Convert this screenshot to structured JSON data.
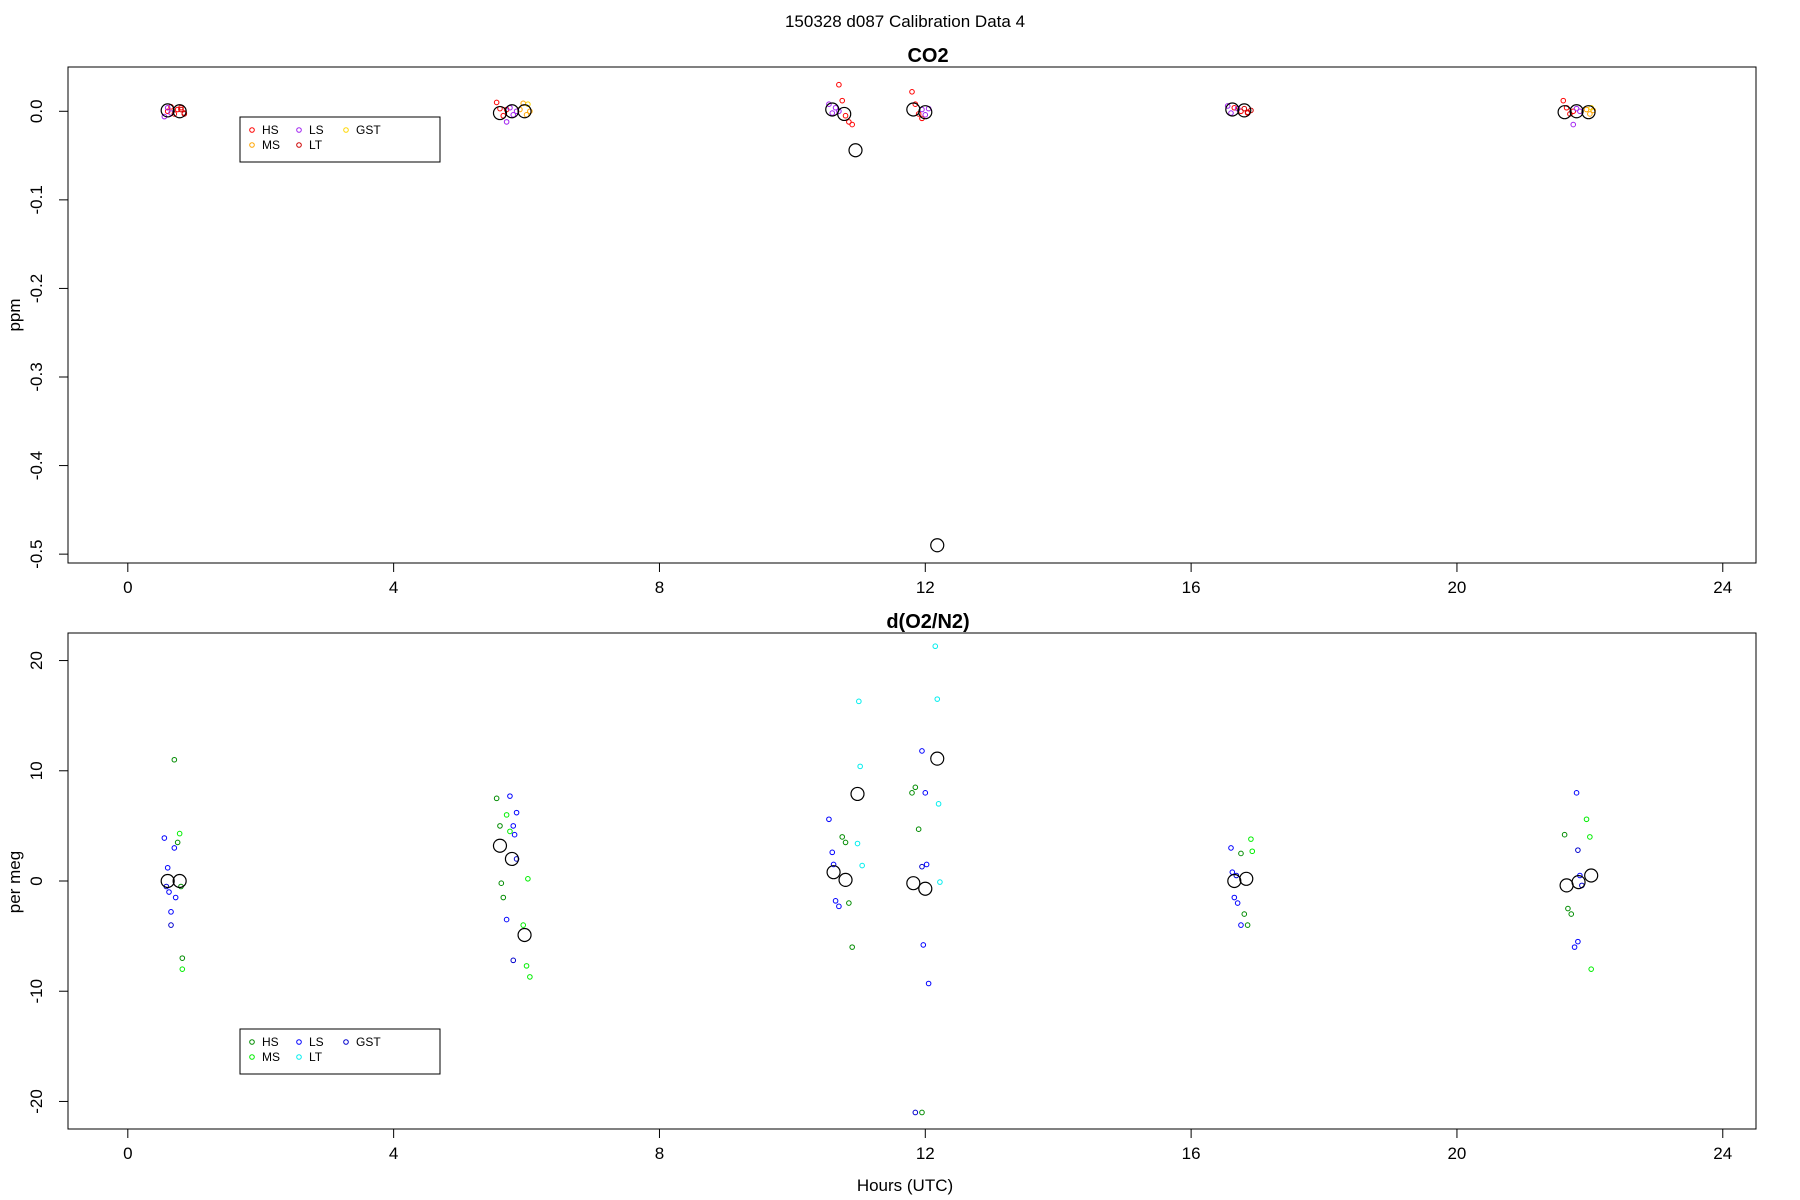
{
  "figure": {
    "title": "150328   d087   Calibration Data 4"
  },
  "chart_data": [
    {
      "type": "scatter",
      "title": "CO2",
      "xlabel": "",
      "ylabel": "ppm",
      "xlim": [
        -0.9,
        24.5
      ],
      "ylim": [
        -0.51,
        0.05
      ],
      "xticks": [
        0,
        4,
        8,
        12,
        16,
        20,
        24
      ],
      "yticks": [
        0.0,
        -0.1,
        -0.2,
        -0.3,
        -0.4,
        -0.5
      ],
      "yticklabels": [
        "0.0",
        "-0.1",
        "-0.2",
        "-0.3",
        "-0.4",
        "-0.5"
      ],
      "grid": false,
      "legend": {
        "position": "top-left",
        "entries": [
          {
            "label": "HS",
            "color": "#ff0000"
          },
          {
            "label": "MS",
            "color": "#ffa500"
          },
          {
            "label": "LS",
            "color": "#a020f0"
          },
          {
            "label": "LT",
            "color": "#cd0000"
          },
          {
            "label": "GST",
            "color": "#ffd700"
          }
        ]
      },
      "series": [
        {
          "name": "HS",
          "color": "#ff0000",
          "x": [
            0.6,
            0.65,
            0.7,
            0.75,
            0.8,
            0.85,
            5.55,
            5.6,
            5.65,
            5.7,
            10.7,
            10.75,
            10.8,
            10.85,
            10.9,
            11.8,
            11.85,
            11.9,
            11.95,
            16.65,
            16.75,
            16.85,
            21.6,
            21.65,
            21.7,
            21.75
          ],
          "y": [
            0.0,
            0.005,
            -0.003,
            0.002,
            0.004,
            -0.002,
            0.01,
            0.003,
            -0.005,
            0.002,
            0.03,
            0.012,
            -0.005,
            -0.012,
            -0.015,
            0.022,
            0.008,
            -0.003,
            -0.008,
            0.004,
            0.0,
            -0.002,
            0.012,
            0.004,
            -0.003,
            0.0
          ]
        },
        {
          "name": "MS",
          "color": "#ffa500",
          "x": [
            5.9,
            5.95,
            6.0,
            6.05,
            21.95,
            22.0,
            22.05
          ],
          "y": [
            0.002,
            0.009,
            -0.004,
            0.0,
            0.002,
            -0.003,
            0.001
          ]
        },
        {
          "name": "LS",
          "color": "#a020f0",
          "x": [
            0.55,
            0.6,
            0.65,
            5.7,
            5.75,
            5.8,
            5.85,
            10.55,
            10.6,
            10.65,
            10.7,
            11.95,
            12.0,
            12.05,
            16.55,
            16.6,
            16.7,
            21.75,
            21.8,
            21.85
          ],
          "y": [
            -0.006,
            0.004,
            -0.002,
            -0.012,
            0.004,
            -0.004,
            0.0,
            0.008,
            -0.002,
            0.004,
            0.0,
            0.002,
            -0.004,
            0.003,
            0.006,
            -0.002,
            0.003,
            -0.015,
            0.003,
            0.0
          ]
        },
        {
          "name": "LT",
          "color": "#cd0000",
          "x": [
            0.8,
            0.85,
            16.8,
            16.85,
            16.9
          ],
          "y": [
            0.002,
            -0.003,
            0.003,
            -0.001,
            0.001
          ]
        },
        {
          "name": "GST",
          "color": "#ffd700",
          "x": [
            6.02,
            22.02
          ],
          "y": [
            0.008,
            0.004
          ]
        },
        {
          "name": "",
          "color": "#000000",
          "large": true,
          "x": [
            0.6,
            0.78,
            5.6,
            5.78,
            5.97,
            10.6,
            10.78,
            10.95,
            11.82,
            12.0,
            12.18,
            16.62,
            16.8,
            21.62,
            21.8,
            21.98
          ],
          "y": [
            0.001,
            0.0,
            -0.002,
            0.0,
            0.0,
            0.002,
            -0.003,
            -0.044,
            0.002,
            -0.001,
            -0.49,
            0.002,
            0.001,
            -0.001,
            0.0,
            -0.001
          ]
        }
      ]
    },
    {
      "type": "scatter",
      "title": "d(O2/N2)",
      "xlabel": "Hours (UTC)",
      "ylabel": "per meg",
      "xlim": [
        -0.9,
        24.5
      ],
      "ylim": [
        -22.5,
        22.5
      ],
      "xticks": [
        0,
        4,
        8,
        12,
        16,
        20,
        24
      ],
      "yticks": [
        20,
        10,
        0,
        -10,
        -20
      ],
      "yticklabels": [
        "20",
        "10",
        "0",
        "-10",
        "-20"
      ],
      "grid": false,
      "legend": {
        "position": "bottom-left",
        "entries": [
          {
            "label": "HS",
            "color": "#008b00"
          },
          {
            "label": "MS",
            "color": "#00ee00"
          },
          {
            "label": "LS",
            "color": "#0000ff"
          },
          {
            "label": "LT",
            "color": "#00eeee"
          },
          {
            "label": "GST",
            "color": "#0000cd"
          }
        ]
      },
      "series": [
        {
          "name": "HS",
          "color": "#008b00",
          "x": [
            0.7,
            0.75,
            0.8,
            0.82,
            5.55,
            5.6,
            5.62,
            5.65,
            10.75,
            10.8,
            10.85,
            10.9,
            11.8,
            11.85,
            11.9,
            11.95,
            16.75,
            16.8,
            16.85,
            21.62,
            21.67,
            21.72
          ],
          "y": [
            11.0,
            3.5,
            -0.5,
            -7.0,
            7.5,
            5.0,
            -0.2,
            -1.5,
            4.0,
            3.5,
            -2.0,
            -6.0,
            8.0,
            8.5,
            4.7,
            -21.0,
            2.5,
            -3.0,
            -4.0,
            4.2,
            -2.5,
            -3.0
          ]
        },
        {
          "name": "MS",
          "color": "#00ee00",
          "x": [
            0.78,
            0.82,
            5.7,
            5.75,
            5.95,
            6.0,
            6.05,
            6.02,
            16.9,
            16.92,
            21.95,
            22.0,
            22.02
          ],
          "y": [
            4.3,
            -8.0,
            6.0,
            4.5,
            -4.0,
            -7.7,
            -8.7,
            0.2,
            3.8,
            2.7,
            5.6,
            4.0,
            -8.0
          ]
        },
        {
          "name": "LS",
          "color": "#0000ff",
          "x": [
            0.55,
            0.6,
            0.62,
            0.65,
            0.7,
            0.72,
            5.75,
            5.8,
            5.82,
            5.85,
            5.7,
            10.55,
            10.6,
            10.62,
            10.65,
            10.7,
            11.95,
            12.0,
            12.02,
            12.05,
            11.97,
            16.6,
            16.62,
            16.65,
            16.7,
            16.75,
            21.8,
            21.82,
            21.85,
            21.77
          ],
          "y": [
            3.9,
            1.2,
            -1.0,
            -2.8,
            3.0,
            -1.5,
            7.7,
            5.0,
            4.2,
            6.2,
            -3.5,
            5.6,
            2.6,
            1.5,
            -1.8,
            -2.3,
            11.8,
            8.0,
            1.5,
            -9.3,
            -5.8,
            3.0,
            0.8,
            -1.5,
            -2.0,
            -4.0,
            8.0,
            -5.5,
            0.5,
            -6.0
          ]
        },
        {
          "name": "LT",
          "color": "#00eeee",
          "x": [
            11.0,
            11.02,
            10.98,
            11.05,
            12.15,
            12.18,
            12.2,
            12.22
          ],
          "y": [
            16.3,
            10.4,
            3.4,
            1.4,
            21.3,
            16.5,
            7.0,
            -0.1
          ]
        },
        {
          "name": "GST",
          "color": "#0000cd",
          "x": [
            0.58,
            0.65,
            5.8,
            5.85,
            11.85,
            11.95,
            16.68,
            21.82,
            21.88
          ],
          "y": [
            -0.5,
            -4.0,
            -7.2,
            2.0,
            -21.0,
            1.3,
            0.5,
            2.8,
            -0.4
          ]
        },
        {
          "name": "",
          "color": "#000000",
          "large": true,
          "x": [
            0.6,
            0.78,
            5.6,
            5.78,
            5.97,
            10.62,
            10.8,
            10.98,
            11.82,
            12.0,
            12.18,
            16.65,
            16.83,
            21.65,
            21.83,
            22.02
          ],
          "y": [
            0.0,
            0.0,
            3.2,
            2.0,
            -4.9,
            0.8,
            0.1,
            7.9,
            -0.2,
            -0.7,
            11.1,
            0.0,
            0.2,
            -0.4,
            -0.1,
            0.5
          ]
        }
      ]
    }
  ]
}
